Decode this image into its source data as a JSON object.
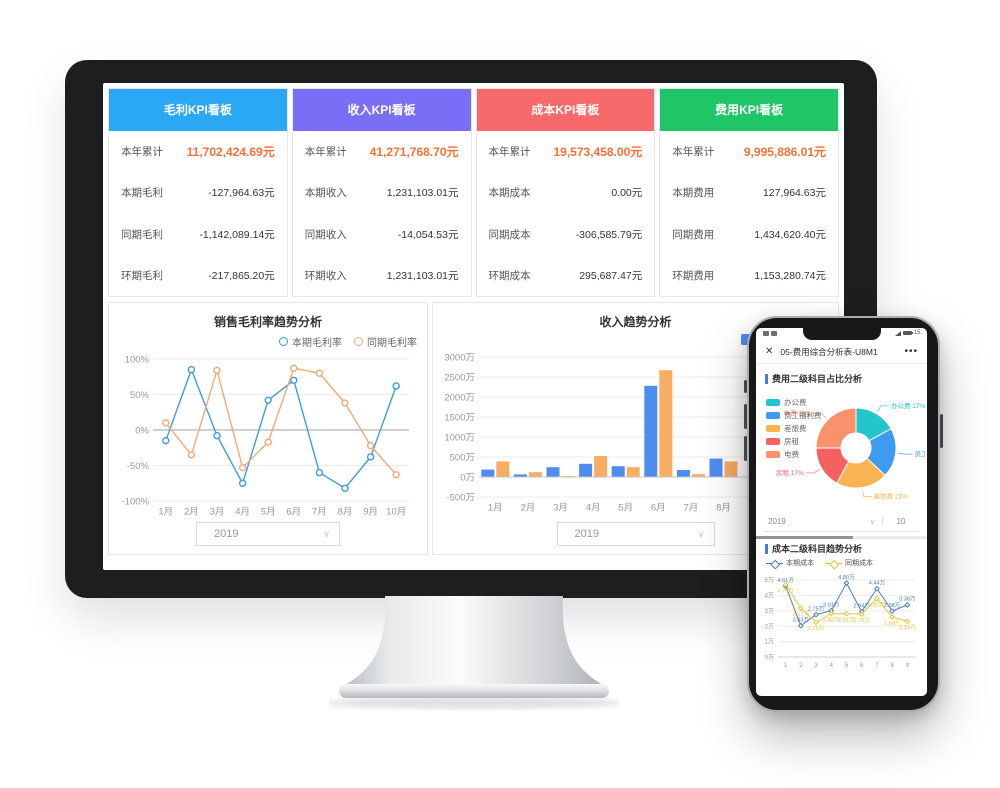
{
  "accent_value_color": "#f96f34",
  "kpi": {
    "cards": [
      {
        "header": "毛利KPI看板",
        "header_color": "#2aa7f5",
        "rows": [
          {
            "label": "本年累计",
            "value": "11,702,424.69元"
          },
          {
            "label": "本期毛利",
            "value": "-127,964.63元"
          },
          {
            "label": "同期毛利",
            "value": "-1,142,089.14元"
          },
          {
            "label": "环期毛利",
            "value": "-217,865.20元"
          }
        ]
      },
      {
        "header": "收入KPI看板",
        "header_color": "#7b6ef6",
        "rows": [
          {
            "label": "本年累计",
            "value": "41,271,768.70元"
          },
          {
            "label": "本期收入",
            "value": "1,231,103.01元"
          },
          {
            "label": "同期收入",
            "value": "-14,054.53元"
          },
          {
            "label": "环期收入",
            "value": "1,231,103.01元"
          }
        ]
      },
      {
        "header": "成本KPI看板",
        "header_color": "#f8696b",
        "rows": [
          {
            "label": "本年累计",
            "value": "19,573,458.00元"
          },
          {
            "label": "本期成本",
            "value": "0.00元"
          },
          {
            "label": "同期成本",
            "value": "-306,585.79元"
          },
          {
            "label": "环期成本",
            "value": "295,687.47元"
          }
        ]
      },
      {
        "header": "费用KPI看板",
        "header_color": "#1fc667",
        "rows": [
          {
            "label": "本年累计",
            "value": "9,995,886.01元"
          },
          {
            "label": "本期费用",
            "value": "127,964.63元"
          },
          {
            "label": "同期费用",
            "value": "1,434,620.40元"
          },
          {
            "label": "环期费用",
            "value": "1,153,280.74元"
          }
        ]
      }
    ]
  },
  "left_panel": {
    "year": "2019"
  },
  "right_panel": {
    "year": "2019",
    "legend_partial_color": "#4b8df8"
  },
  "phone": {
    "status": {
      "time": "15:"
    },
    "titlebar": {
      "close": "✕",
      "title": "05-费用综合分析表-U8M1",
      "menu": "•••"
    },
    "section1": {
      "title": "费用二级科目占比分析",
      "selector_year": "2019",
      "pager": "10"
    },
    "section2": {
      "title": "成本二级科目趋势分析"
    }
  },
  "chart_data": [
    {
      "id": "margin-trend",
      "type": "line",
      "title": "销售毛利率趋势分析",
      "categories": [
        "1月",
        "2月",
        "3月",
        "4月",
        "5月",
        "6月",
        "7月",
        "8月",
        "9月",
        "10月"
      ],
      "ylim": [
        -100,
        100
      ],
      "yticks": [
        {
          "v": -100,
          "label": "-100%"
        },
        {
          "v": -50,
          "label": "-50%"
        },
        {
          "v": 0,
          "label": "0%"
        },
        {
          "v": 50,
          "label": "50%"
        },
        {
          "v": 100,
          "label": "100%"
        }
      ],
      "series": [
        {
          "name": "本期毛利率",
          "color": "#3b9de2",
          "values": [
            -15,
            85,
            -8,
            -75,
            42,
            70,
            -60,
            -82,
            -38,
            62
          ]
        },
        {
          "name": "同期毛利率",
          "color": "#f2aa72",
          "values": [
            10,
            -35,
            84,
            -53,
            -17,
            87,
            80,
            38,
            -22,
            -63
          ]
        }
      ],
      "legend_position": "top-right",
      "grid": true,
      "selector": "2019"
    },
    {
      "id": "revenue-trend",
      "type": "bar",
      "title": "收入趋势分析",
      "categories": [
        "1月",
        "2月",
        "3月",
        "4月",
        "5月",
        "6月",
        "7月",
        "8月"
      ],
      "ylim": [
        -500,
        3000
      ],
      "yticks": [
        {
          "v": -500,
          "label": "-500万"
        },
        {
          "v": 0,
          "label": "0万"
        },
        {
          "v": 500,
          "label": "500万"
        },
        {
          "v": 1000,
          "label": "1000万"
        },
        {
          "v": 1500,
          "label": "1500万"
        },
        {
          "v": 2000,
          "label": "2000万"
        },
        {
          "v": 2500,
          "label": "2500万"
        },
        {
          "v": 3000,
          "label": "3000万"
        }
      ],
      "series": [
        {
          "color": "#4e8cf0",
          "values": [
            185,
            65,
            245,
            330,
            270,
            2280,
            175,
            460
          ]
        },
        {
          "color": "#f7ad62",
          "values": [
            390,
            120,
            25,
            525,
            245,
            2670,
            70,
            390
          ]
        }
      ],
      "grid": true,
      "selector": "2019"
    },
    {
      "id": "expense-share",
      "type": "pie",
      "title": "费用二级科目占比分析",
      "inner_radius_ratio": 0.37,
      "slices": [
        {
          "label": "办公费",
          "pct": 17,
          "color": "#23c6cd",
          "callout": "办公费 17%"
        },
        {
          "label": "员工福利费",
          "pct": 20,
          "color": "#3d9bf3",
          "callout": "员工"
        },
        {
          "label": "差旅费",
          "pct": 21,
          "color": "#f8b450",
          "callout": "差旅费 21%"
        },
        {
          "label": "房租",
          "pct": 17,
          "color": "#f56060",
          "callout": "房租 17%"
        },
        {
          "label": "电费",
          "pct": 25,
          "color": "#f9916c",
          "callout": "电费 25%"
        }
      ]
    },
    {
      "id": "cost-trend",
      "type": "line",
      "title": "成本二级科目趋势分析",
      "categories": [
        "1",
        "2",
        "3",
        "4",
        "5",
        "6",
        "7",
        "8",
        "9"
      ],
      "ylim": [
        0,
        5
      ],
      "yticks": [
        {
          "v": 0,
          "label": "0万"
        },
        {
          "v": 1,
          "label": "1万"
        },
        {
          "v": 2,
          "label": "2万"
        },
        {
          "v": 3,
          "label": "3万"
        },
        {
          "v": 4,
          "label": "4万"
        },
        {
          "v": 5,
          "label": "5万"
        }
      ],
      "series": [
        {
          "name": "本期成本",
          "color": "#4a7ebb",
          "marker": "diamond",
          "label_pos": "above",
          "values": [
            4.61,
            2.03,
            2.75,
            3.01,
            4.8,
            2.94,
            4.44,
            2.98,
            3.38
          ]
        },
        {
          "name": "同期成本",
          "color": "#e9c637",
          "marker": "diamond",
          "label_pos": "below",
          "values": [
            4.7,
            3.17,
            2.25,
            2.82,
            2.81,
            2.79,
            3.8,
            2.6,
            2.31
          ]
        }
      ],
      "show_labels": true
    }
  ]
}
